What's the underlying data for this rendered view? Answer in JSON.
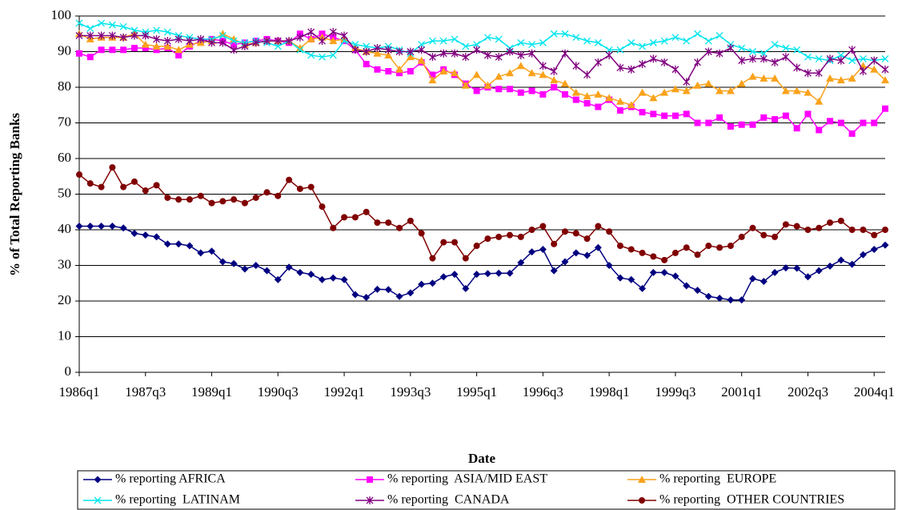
{
  "chart_data": {
    "type": "line",
    "y_label": "% of Total Reporting Banks",
    "x_label": "Date",
    "categories": [
      "1986q1",
      null,
      null,
      null,
      null,
      null,
      "1987q3",
      null,
      null,
      null,
      null,
      null,
      "1989q1",
      null,
      null,
      null,
      null,
      null,
      "1990q3",
      null,
      null,
      null,
      null,
      null,
      "1992q1",
      null,
      null,
      null,
      null,
      null,
      "1993q3",
      null,
      null,
      null,
      null,
      null,
      "1995q1",
      null,
      null,
      null,
      null,
      null,
      "1996q3",
      null,
      null,
      null,
      null,
      null,
      "1998q1",
      null,
      null,
      null,
      null,
      null,
      "1999q3",
      null,
      null,
      null,
      null,
      null,
      "2001q1",
      null,
      null,
      null,
      null,
      null,
      "2002q3",
      null,
      null,
      null,
      null,
      null,
      "2004q1",
      null
    ],
    "ylim": [
      0,
      100
    ],
    "yticks": [
      0,
      10,
      20,
      30,
      40,
      50,
      60,
      70,
      80,
      90,
      100
    ],
    "grid": true,
    "series": [
      {
        "name": "% reporting AFRICA",
        "color": "#000080",
        "marker": "diamond",
        "values": [
          41,
          41,
          41,
          41,
          40.5,
          39,
          38.5,
          38,
          36,
          36,
          35.5,
          33.5,
          34,
          31,
          30.5,
          29,
          30,
          28.5,
          26,
          29.5,
          28,
          27.5,
          26,
          26.5,
          26,
          21.8,
          21,
          23.3,
          23.2,
          21.3,
          22.3,
          24.7,
          25,
          26.8,
          27.5,
          23.5,
          27.5,
          27.7,
          27.8,
          27.8,
          30.8,
          33.8,
          34.5,
          28.5,
          31,
          33.5,
          32.8,
          35,
          30,
          26.5,
          26,
          23.5,
          28,
          28,
          27,
          24.3,
          23,
          21.3,
          20.8,
          20.3,
          20.3,
          26.3,
          25.5,
          28,
          29.3,
          29.2,
          26.8,
          28.5,
          29.8,
          31.5,
          30.3,
          33,
          34.5,
          35.7
        ]
      },
      {
        "name": "% reporting  ASIA/MID EAST",
        "color": "#ff00ff",
        "marker": "square",
        "values": [
          89.5,
          88.5,
          90.5,
          90.5,
          90.5,
          91,
          91,
          90.5,
          91,
          89,
          91.5,
          93,
          93.5,
          93,
          92,
          92.5,
          93,
          93.5,
          93,
          92.5,
          95,
          93.5,
          95,
          94,
          93,
          90.5,
          86.5,
          85,
          84.5,
          84,
          84.5,
          87,
          83.5,
          85,
          83.5,
          81,
          79,
          80,
          79.5,
          79.5,
          78.5,
          79,
          78,
          80,
          78,
          76.5,
          75.5,
          74.5,
          76.5,
          73.5,
          74.5,
          73,
          72.5,
          72,
          72,
          72.5,
          70,
          70,
          71.5,
          69,
          69.5,
          69.5,
          71.5,
          71,
          72,
          68.5,
          72.5,
          68,
          70.5,
          70,
          67,
          70,
          70,
          74
        ]
      },
      {
        "name": "% reporting  EUROPE",
        "color": "#f9a21b",
        "marker": "triangle",
        "values": [
          95,
          93.5,
          94,
          94,
          94,
          95,
          92,
          91.5,
          91.5,
          90.5,
          92,
          92.5,
          93,
          95,
          93.5,
          92,
          92.5,
          93,
          93,
          93,
          91,
          93.5,
          94,
          93,
          93.5,
          91,
          90,
          89.5,
          89,
          85,
          88.5,
          87.5,
          82,
          84.5,
          84,
          80.5,
          83.5,
          80.5,
          83,
          84,
          86,
          84,
          83.5,
          82,
          81,
          78.5,
          77.5,
          78,
          77,
          76,
          75,
          78.5,
          77,
          78.5,
          79.5,
          79,
          80.5,
          81,
          79,
          79,
          81,
          83,
          82.5,
          82.5,
          79,
          79,
          78.5,
          76,
          82.5,
          82,
          82.5,
          86,
          85,
          82
        ]
      },
      {
        "name": "% reporting  LATINAM",
        "color": "#00e5ee",
        "marker": "x",
        "values": [
          98,
          96.5,
          98,
          97.5,
          97,
          96,
          95.5,
          96,
          95.5,
          94.5,
          94,
          93.5,
          93.5,
          94.5,
          93,
          92.5,
          93,
          92.5,
          91.5,
          93,
          90.5,
          89,
          88.5,
          89,
          93,
          92,
          91.5,
          91,
          91.5,
          90.5,
          89.5,
          92,
          93,
          93,
          93.5,
          91.5,
          92,
          94,
          93.5,
          91,
          92.5,
          92,
          92.5,
          95,
          95,
          94,
          93,
          92.5,
          90.5,
          90.5,
          92.5,
          91.5,
          92.5,
          93,
          94,
          93,
          95,
          93,
          94.5,
          92,
          91,
          90,
          89.5,
          92,
          91,
          90.5,
          88.5,
          88,
          87.5,
          89,
          87.5,
          88,
          87.5,
          88
        ]
      },
      {
        "name": "% reporting  CANADA",
        "color": "#800080",
        "marker": "star",
        "values": [
          94.5,
          94.5,
          94.5,
          94.5,
          94,
          94.5,
          94.5,
          93.5,
          93,
          93.5,
          93,
          93.5,
          92.5,
          92.5,
          90.5,
          91.5,
          92.5,
          93,
          93,
          93,
          94,
          95.5,
          93,
          95.5,
          94.5,
          90.5,
          90,
          91,
          90.5,
          90,
          90,
          90.5,
          88.5,
          89.5,
          89.5,
          88.5,
          90.5,
          89,
          88.5,
          90,
          89,
          89.5,
          86,
          84.5,
          89.5,
          86,
          83.5,
          87,
          89,
          85.5,
          85,
          86.5,
          88,
          87,
          85,
          81.5,
          87,
          90,
          89.5,
          91,
          87.5,
          88,
          88,
          87,
          88.5,
          85.5,
          84,
          84,
          88,
          87.5,
          90.5,
          84.5,
          87.5,
          85
        ]
      },
      {
        "name": "% reporting  OTHER COUNTRIES",
        "color": "#800000",
        "marker": "circle",
        "values": [
          55.5,
          53,
          52,
          57.5,
          52,
          53.5,
          51,
          52.5,
          49,
          48.5,
          48.5,
          49.5,
          47.5,
          48,
          48.5,
          47.5,
          49,
          50.5,
          49.5,
          54,
          51.5,
          52,
          46.5,
          40.5,
          43.5,
          43.5,
          45,
          42,
          42,
          40.5,
          42.5,
          39,
          32,
          36.5,
          36.5,
          32,
          35.5,
          37.5,
          38,
          38.5,
          38,
          40,
          41,
          36,
          39.5,
          39,
          37.5,
          41,
          39.5,
          35.5,
          34.5,
          33.5,
          32.5,
          31.5,
          33.5,
          35,
          33,
          35.5,
          35,
          35.5,
          38,
          40.5,
          38.5,
          38,
          41.5,
          41,
          40,
          40.5,
          42,
          42.5,
          40,
          40,
          38.5,
          40
        ]
      }
    ]
  }
}
